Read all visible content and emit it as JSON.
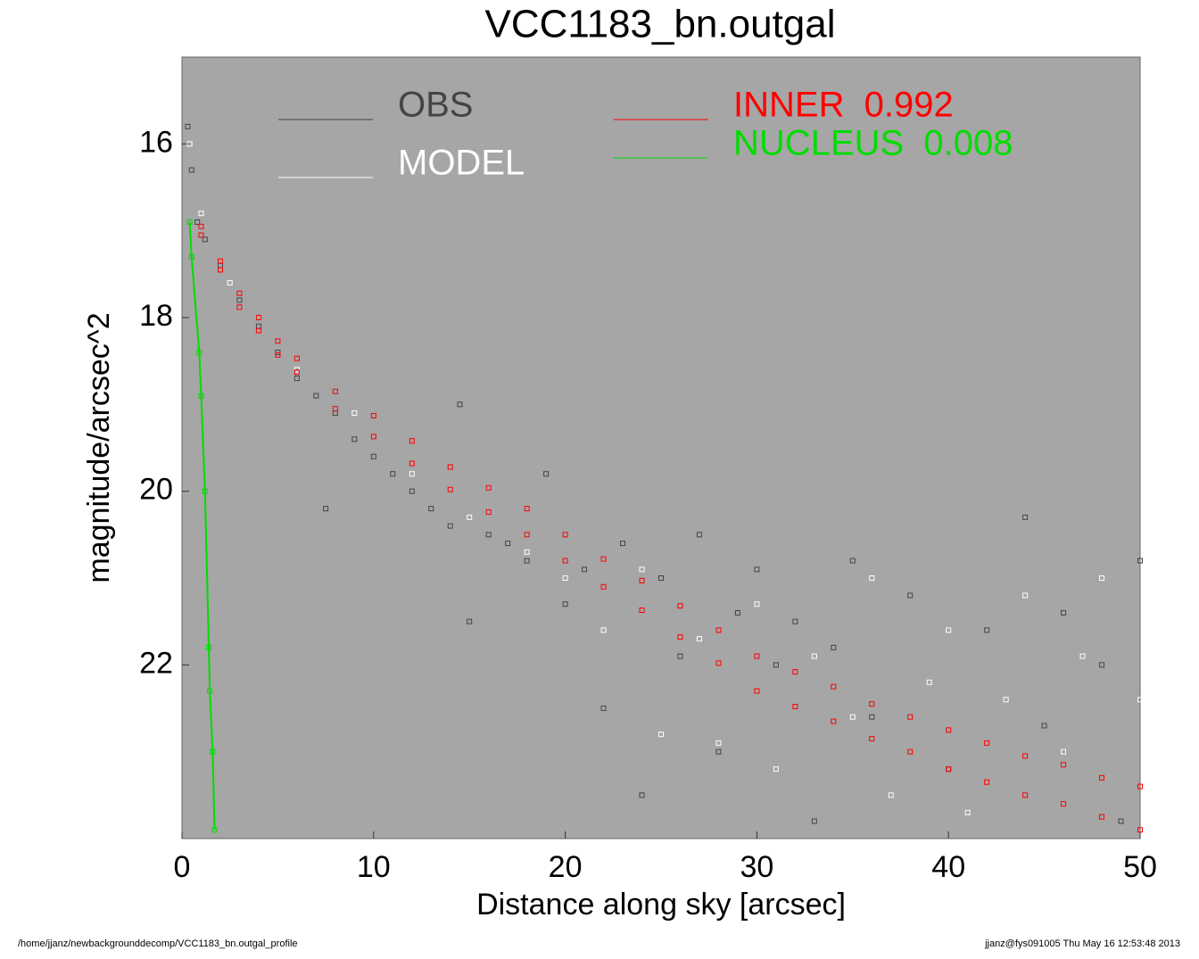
{
  "chart_data": {
    "type": "scatter",
    "title": "VCC1183_bn.outgal",
    "x_label": "Distance along sky [arcsec]",
    "y_label": "magnitude/arcsec^2",
    "footer_left": "/home/jjanz/newbackgrounddecomp/VCC1183_bn.outgal_profile",
    "footer_right": "jjanz@fys091005  Thu May 16 12:53:48 2013",
    "background": "#a6a6a6",
    "xlim": [
      0,
      50
    ],
    "xticks": [
      0,
      10,
      20,
      30,
      40,
      50
    ],
    "ylim": [
      24,
      15
    ],
    "yticks": [
      16,
      18,
      20,
      22
    ],
    "series": [
      {
        "name": "OBS",
        "color": "#444444",
        "x": [
          0.3,
          0.5,
          0.8,
          1.2,
          2,
          3,
          4,
          5,
          6,
          7,
          7.5,
          8,
          9,
          10,
          11,
          12,
          13,
          14,
          14.5,
          15,
          16,
          17,
          18,
          19,
          20,
          21,
          22,
          23,
          24,
          25,
          26,
          27,
          28,
          29,
          30,
          31,
          32,
          33,
          34,
          35,
          36,
          38,
          40,
          42,
          44,
          45,
          46,
          48,
          49,
          50
        ],
        "values": [
          15.8,
          16.3,
          16.9,
          17.1,
          17.4,
          17.8,
          18.1,
          18.4,
          18.7,
          18.9,
          20.2,
          19.1,
          19.4,
          19.6,
          19.8,
          20.0,
          20.2,
          20.4,
          19.0,
          21.5,
          20.5,
          20.6,
          20.8,
          19.8,
          21.3,
          20.9,
          22.5,
          20.6,
          23.5,
          21.0,
          21.9,
          20.5,
          23.0,
          21.4,
          20.9,
          22.0,
          21.5,
          23.8,
          21.8,
          20.8,
          22.6,
          21.2,
          23.2,
          21.6,
          20.3,
          22.7,
          21.4,
          22.0,
          23.8,
          20.8
        ]
      },
      {
        "name": "MODEL",
        "color": "#ffffff",
        "x": [
          0.4,
          1,
          2.5,
          4,
          6,
          9,
          12,
          15,
          18,
          20,
          22,
          24,
          25,
          27,
          28,
          30,
          31,
          33,
          35,
          36,
          37,
          39,
          40,
          41,
          43,
          44,
          46,
          47,
          48,
          50
        ],
        "values": [
          16.0,
          16.8,
          17.6,
          18.0,
          18.6,
          19.1,
          19.8,
          20.3,
          20.7,
          21.0,
          21.6,
          20.9,
          22.8,
          21.7,
          22.9,
          21.3,
          23.2,
          21.9,
          22.6,
          21.0,
          23.5,
          22.2,
          21.6,
          23.7,
          22.4,
          21.2,
          23.0,
          21.9,
          21.0,
          22.4
        ]
      },
      {
        "name": "INNER  0.992",
        "color": "#ff0000",
        "x": [
          1,
          1,
          2,
          2,
          3,
          3,
          4,
          4,
          5,
          5,
          6,
          6,
          8,
          8,
          10,
          10,
          12,
          12,
          14,
          14,
          16,
          16,
          18,
          18,
          20,
          20,
          22,
          22,
          24,
          24,
          26,
          26,
          28,
          28,
          30,
          30,
          32,
          32,
          34,
          34,
          36,
          36,
          38,
          38,
          40,
          40,
          42,
          42,
          44,
          44,
          46,
          46,
          48,
          48,
          50,
          50
        ],
        "values": [
          16.95,
          17.05,
          17.35,
          17.45,
          17.72,
          17.88,
          18.0,
          18.15,
          18.27,
          18.43,
          18.47,
          18.63,
          18.85,
          19.05,
          19.13,
          19.37,
          19.42,
          19.68,
          19.72,
          19.98,
          19.96,
          20.24,
          20.2,
          20.5,
          20.5,
          20.8,
          20.78,
          21.1,
          21.03,
          21.37,
          21.32,
          21.68,
          21.6,
          21.98,
          21.9,
          22.3,
          22.08,
          22.48,
          22.25,
          22.65,
          22.45,
          22.85,
          22.6,
          23.0,
          22.75,
          23.2,
          22.9,
          23.35,
          23.05,
          23.5,
          23.15,
          23.6,
          23.3,
          23.75,
          23.4,
          23.9
        ]
      },
      {
        "name": "NUCLEUS  0.008",
        "color": "#00dd00",
        "line": true,
        "x": [
          0.4,
          0.5,
          0.9,
          1.0,
          1.2,
          1.4,
          1.45,
          1.6,
          1.7
        ],
        "values": [
          16.9,
          17.3,
          18.4,
          18.9,
          20.0,
          21.8,
          22.3,
          23.0,
          23.9
        ]
      }
    ]
  }
}
